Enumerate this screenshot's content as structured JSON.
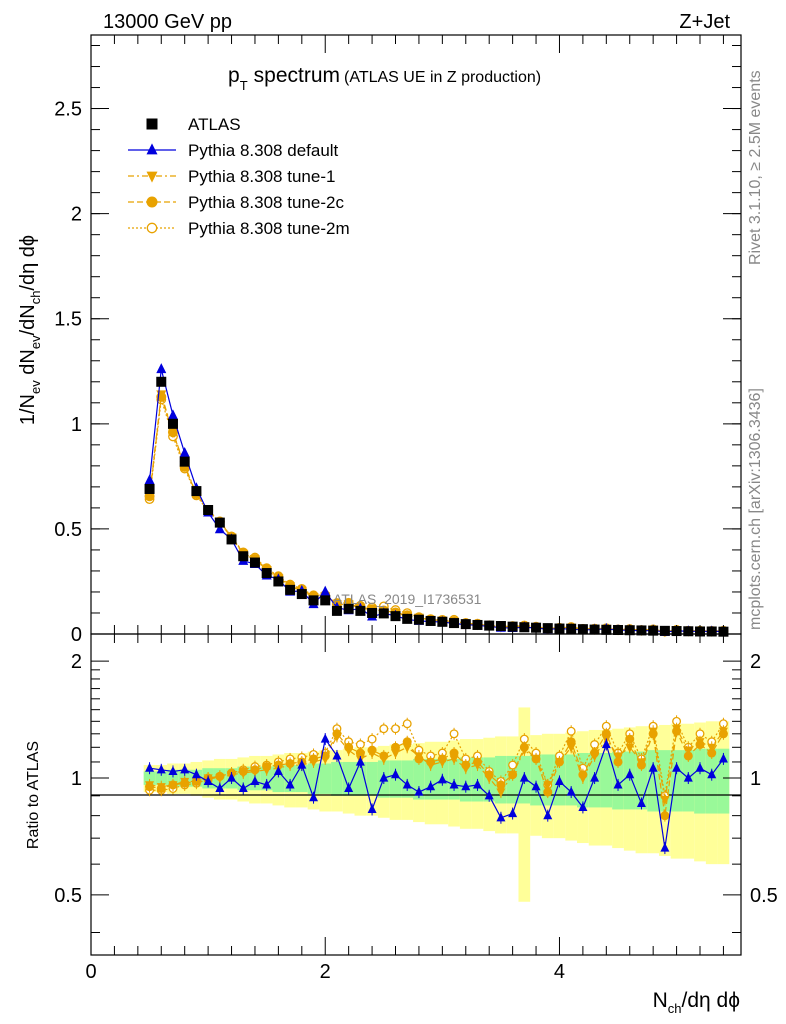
{
  "header": {
    "left": "13000 GeV pp",
    "right": "Z+Jet"
  },
  "side_labels": {
    "rivet": "Rivet 3.1.10, ≥ 2.5M events",
    "source": "mcplots.cern.ch [arXiv:1306.3436]"
  },
  "chart_data": {
    "type": "scatter",
    "title_main": "p",
    "title_sub": "T",
    "title_rest": "spectrum",
    "title_paren": "(ATLAS UE in Z production)",
    "watermark": "ATLAS_2019_I1736531",
    "xlabel": "N_ch/dη dϕ",
    "ylabel": "1/N_ev dN_ev/dN_ch/dη dϕ",
    "ratio_ylabel": "Ratio to ATLAS",
    "xlim": [
      0,
      5.55
    ],
    "ylim": [
      0,
      2.85
    ],
    "ratio_ylim": [
      0.35,
      2.35
    ],
    "ratio_reference": 1,
    "x_ticks": [
      "0",
      "2",
      "4"
    ],
    "y_ticks": [
      "0",
      "0.5",
      "1",
      "1.5",
      "2",
      "2.5"
    ],
    "ratio_y_ticks": [
      "0.5",
      "1",
      "2"
    ],
    "legend_position": "top-left",
    "x": [
      0.5,
      0.6,
      0.7,
      0.8,
      0.9,
      1.0,
      1.1,
      1.2,
      1.3,
      1.4,
      1.5,
      1.6,
      1.7,
      1.8,
      1.9,
      2.0,
      2.1,
      2.2,
      2.3,
      2.4,
      2.5,
      2.6,
      2.7,
      2.8,
      2.9,
      3.0,
      3.1,
      3.2,
      3.3,
      3.4,
      3.5,
      3.6,
      3.7,
      3.8,
      3.9,
      4.0,
      4.1,
      4.2,
      4.3,
      4.4,
      4.5,
      4.6,
      4.7,
      4.8,
      4.9,
      5.0,
      5.1,
      5.2,
      5.3,
      5.4
    ],
    "series": [
      {
        "name": "ATLAS",
        "color": "#000000",
        "marker": "square",
        "line": "none",
        "values": [
          0.69,
          1.2,
          1.0,
          0.82,
          0.68,
          0.59,
          0.53,
          0.45,
          0.37,
          0.34,
          0.29,
          0.25,
          0.21,
          0.19,
          0.16,
          0.16,
          0.11,
          0.12,
          0.11,
          0.1,
          0.098,
          0.085,
          0.072,
          0.068,
          0.062,
          0.058,
          0.052,
          0.047,
          0.043,
          0.04,
          0.038,
          0.035,
          0.032,
          0.03,
          0.028,
          0.026,
          0.025,
          0.023,
          0.021,
          0.02,
          0.019,
          0.018,
          0.017,
          0.016,
          0.015,
          0.014,
          0.013,
          0.012,
          0.012,
          0.011
        ]
      },
      {
        "name": "Pythia 8.308 default",
        "color": "#0000dd",
        "marker": "triangle-up",
        "line": "solid",
        "ratio": [
          1.06,
          1.05,
          1.04,
          1.05,
          1.02,
          0.98,
          0.94,
          1.0,
          0.94,
          0.98,
          0.96,
          1.04,
          0.96,
          1.08,
          0.89,
          1.26,
          1.14,
          0.94,
          1.1,
          0.83,
          1.0,
          1.02,
          0.96,
          0.92,
          0.95,
          0.99,
          0.96,
          0.95,
          0.96,
          0.9,
          0.79,
          0.81,
          1.0,
          0.95,
          0.8,
          0.98,
          0.92,
          0.84,
          1.0,
          1.22,
          0.96,
          1.02,
          0.86,
          1.06,
          0.66,
          1.06,
          1.0,
          1.06,
          1.02,
          1.12
        ]
      },
      {
        "name": "Pythia 8.308 tune-1",
        "color": "#e8a200",
        "marker": "triangle-down",
        "line": "dashdot",
        "ratio": [
          0.96,
          0.95,
          0.96,
          0.98,
          0.98,
          1.0,
          1.0,
          1.02,
          1.03,
          1.04,
          1.05,
          1.06,
          1.08,
          1.08,
          1.1,
          1.12,
          1.28,
          1.18,
          1.12,
          1.16,
          1.12,
          1.16,
          1.2,
          1.14,
          1.08,
          1.1,
          1.12,
          1.06,
          1.08,
          1.0,
          0.92,
          1.02,
          1.18,
          1.12,
          0.96,
          1.1,
          1.2,
          1.0,
          1.14,
          1.26,
          1.14,
          1.2,
          1.1,
          1.32,
          0.88,
          1.34,
          1.18,
          1.24,
          1.2,
          1.32
        ]
      },
      {
        "name": "Pythia 8.308 tune-2c",
        "color": "#e8a200",
        "marker": "circle",
        "line": "dashed",
        "ratio": [
          0.95,
          0.94,
          0.96,
          0.97,
          0.98,
          1.0,
          1.01,
          1.03,
          1.04,
          1.05,
          1.07,
          1.08,
          1.09,
          1.1,
          1.12,
          1.14,
          1.3,
          1.2,
          1.16,
          1.18,
          1.14,
          1.2,
          1.24,
          1.12,
          1.1,
          1.12,
          1.16,
          1.08,
          1.1,
          1.02,
          0.96,
          1.02,
          1.2,
          1.12,
          0.92,
          1.1,
          1.24,
          1.02,
          1.16,
          1.3,
          1.1,
          1.26,
          1.08,
          1.3,
          0.8,
          1.32,
          1.14,
          1.22,
          1.16,
          1.3
        ]
      },
      {
        "name": "Pythia 8.308 tune-2m",
        "color": "#e8a200",
        "marker": "open-circle",
        "line": "dotted",
        "ratio": [
          0.93,
          0.93,
          0.94,
          0.96,
          0.97,
          0.99,
          1.01,
          1.03,
          1.05,
          1.07,
          1.08,
          1.1,
          1.12,
          1.13,
          1.15,
          1.16,
          1.34,
          1.24,
          1.22,
          1.26,
          1.34,
          1.34,
          1.38,
          1.18,
          1.14,
          1.16,
          1.3,
          1.12,
          1.14,
          1.04,
          0.98,
          1.08,
          1.26,
          1.16,
          0.96,
          1.14,
          1.32,
          1.06,
          1.22,
          1.36,
          1.16,
          1.3,
          1.12,
          1.36,
          0.9,
          1.4,
          1.2,
          1.3,
          1.24,
          1.38
        ]
      }
    ],
    "ratio_bands": {
      "inner_half_width": [
        0.04,
        0.04,
        0.05,
        0.05,
        0.05,
        0.06,
        0.06,
        0.06,
        0.07,
        0.07,
        0.07,
        0.08,
        0.08,
        0.08,
        0.09,
        0.09,
        0.1,
        0.1,
        0.1,
        0.1,
        0.11,
        0.11,
        0.11,
        0.12,
        0.12,
        0.12,
        0.12,
        0.13,
        0.13,
        0.13,
        0.14,
        0.14,
        0.14,
        0.15,
        0.15,
        0.15,
        0.15,
        0.16,
        0.16,
        0.16,
        0.17,
        0.17,
        0.17,
        0.18,
        0.18,
        0.18,
        0.18,
        0.19,
        0.19,
        0.19
      ],
      "outer_half_width": [
        0.08,
        0.08,
        0.09,
        0.09,
        0.1,
        0.11,
        0.12,
        0.12,
        0.13,
        0.14,
        0.14,
        0.15,
        0.16,
        0.16,
        0.17,
        0.18,
        0.18,
        0.19,
        0.2,
        0.2,
        0.21,
        0.22,
        0.22,
        0.23,
        0.24,
        0.24,
        0.25,
        0.26,
        0.26,
        0.27,
        0.28,
        0.28,
        0.52,
        0.29,
        0.3,
        0.3,
        0.31,
        0.32,
        0.33,
        0.33,
        0.34,
        0.35,
        0.36,
        0.36,
        0.37,
        0.38,
        0.38,
        0.39,
        0.4,
        0.4
      ]
    }
  },
  "colors": {
    "inner_band": "#99f999",
    "outer_band": "#ffff99",
    "default": "#0000dd",
    "tunes": "#e8a200",
    "watermark": "#888888"
  }
}
